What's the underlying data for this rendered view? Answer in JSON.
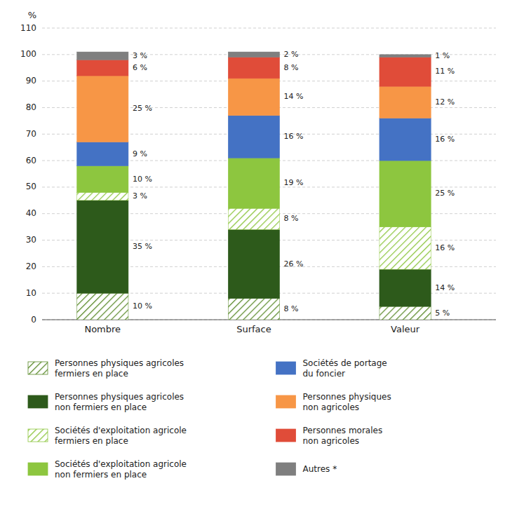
{
  "chart_data": {
    "type": "bar",
    "stacked": true,
    "data_labels": true,
    "grid": true,
    "legend": "bottom",
    "ylabel": "%",
    "categories": [
      "Nombre",
      "Surface",
      "Valeur"
    ],
    "ylim": [
      0,
      110
    ],
    "yticks": [
      0,
      10,
      20,
      30,
      40,
      50,
      60,
      70,
      80,
      90,
      100,
      110
    ],
    "series": [
      {
        "name": "Personnes physiques agricoles\nfermiers en place",
        "color": "#5a8a2a",
        "line_style": "hatched",
        "values": [
          10,
          8,
          5
        ],
        "value_labels": [
          "10 %",
          "8 %",
          "5 %"
        ]
      },
      {
        "name": "Personnes physiques agricoles\nnon fermiers en place",
        "color": "#2d5a1b",
        "line_style": "solid",
        "values": [
          35,
          26,
          14
        ],
        "value_labels": [
          "35 %",
          "26 %",
          "14 %"
        ]
      },
      {
        "name": "Sociétés d'exploitation agricole\nfermiers en place",
        "color": "#8dc63f",
        "line_style": "hatched",
        "values": [
          3,
          8,
          16
        ],
        "value_labels": [
          "3 %",
          "8 %",
          "16 %"
        ]
      },
      {
        "name": "Sociétés d'exploitation agricole\nnon fermiers en place",
        "color": "#8dc63f",
        "line_style": "solid",
        "values": [
          10,
          19,
          25
        ],
        "value_labels": [
          "10 %",
          "19 %",
          "25 %"
        ]
      },
      {
        "name": "Sociétés de portage\ndu foncier",
        "color": "#4472c4",
        "line_style": "solid",
        "values": [
          9,
          16,
          16
        ],
        "value_labels": [
          "9 %",
          "16 %",
          "16 %"
        ]
      },
      {
        "name": "Personnes physiques\nnon agricoles",
        "color": "#f79646",
        "line_style": "solid",
        "values": [
          25,
          14,
          12
        ],
        "value_labels": [
          "25 %",
          "14 %",
          "12 %"
        ]
      },
      {
        "name": "Personnes morales\nnon agricoles",
        "color": "#e04c39",
        "line_style": "solid",
        "values": [
          6,
          8,
          11
        ],
        "value_labels": [
          "6 %",
          "8 %",
          "11 %"
        ]
      },
      {
        "name": "Autres *",
        "color": "#7f7f7f",
        "line_style": "solid",
        "values": [
          3,
          2,
          1
        ],
        "value_labels": [
          "3 %",
          "2 %",
          "1 %"
        ]
      }
    ]
  }
}
